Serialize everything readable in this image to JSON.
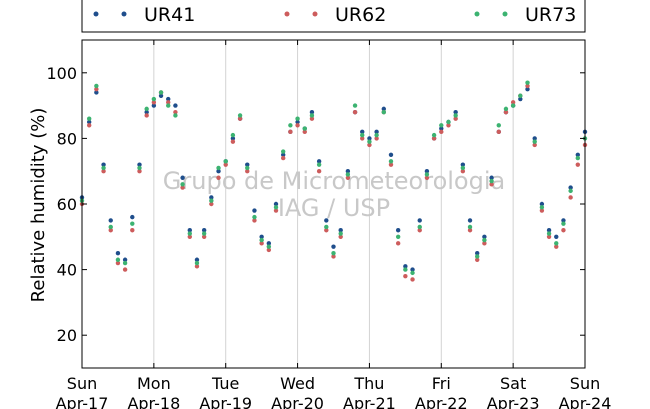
{
  "chart_data": {
    "type": "scatter",
    "ylabel": "Relative humidity (%)",
    "xlabel": "",
    "ylim": [
      10,
      110
    ],
    "xlim": [
      0,
      7
    ],
    "grid": "vertical",
    "legend_placement": "top",
    "watermark": [
      "Grupo de Micrometeorologia",
      "IAG / USP"
    ],
    "y_ticks": [
      {
        "value": 20,
        "label": "20"
      },
      {
        "value": 40,
        "label": "40"
      },
      {
        "value": 60,
        "label": "60"
      },
      {
        "value": 80,
        "label": "80"
      },
      {
        "value": 100,
        "label": "100"
      }
    ],
    "x_ticks": [
      {
        "value": 0,
        "day": "Sun",
        "date": "Apr-17"
      },
      {
        "value": 1,
        "day": "Mon",
        "date": "Apr-18"
      },
      {
        "value": 2,
        "day": "Tue",
        "date": "Apr-19"
      },
      {
        "value": 3,
        "day": "Wed",
        "date": "Apr-20"
      },
      {
        "value": 4,
        "day": "Thu",
        "date": "Apr-21"
      },
      {
        "value": 5,
        "day": "Fri",
        "date": "Apr-22"
      },
      {
        "value": 6,
        "day": "Sat",
        "date": "Apr-23"
      },
      {
        "value": 7,
        "day": "Sun",
        "date": "Apr-24"
      }
    ],
    "series": [
      {
        "name": "UR41",
        "color": "#1f4e8c",
        "x": [
          0,
          0.1,
          0.2,
          0.3,
          0.4,
          0.5,
          0.6,
          0.7,
          0.8,
          0.9,
          1.0,
          1.1,
          1.2,
          1.3,
          1.4,
          1.5,
          1.6,
          1.7,
          1.8,
          1.9,
          2.0,
          2.1,
          2.2,
          2.3,
          2.4,
          2.5,
          2.6,
          2.7,
          2.8,
          2.9,
          3.0,
          3.1,
          3.2,
          3.3,
          3.4,
          3.5,
          3.6,
          3.7,
          3.8,
          3.9,
          4.0,
          4.1,
          4.2,
          4.3,
          4.4,
          4.5,
          4.6,
          4.7,
          4.8,
          4.9,
          5.0,
          5.1,
          5.2,
          5.3,
          5.4,
          5.5,
          5.6,
          5.7,
          5.8,
          5.9,
          6.0,
          6.1,
          6.2,
          6.3,
          6.4,
          6.5,
          6.6,
          6.7,
          6.8,
          6.9,
          7.0
        ],
        "y": [
          62,
          85,
          94,
          72,
          55,
          45,
          43,
          56,
          72,
          88,
          90,
          93,
          92,
          90,
          68,
          52,
          43,
          52,
          62,
          70,
          73,
          80,
          86,
          72,
          58,
          50,
          48,
          60,
          75,
          82,
          85,
          83,
          88,
          73,
          55,
          47,
          52,
          70,
          88,
          82,
          80,
          82,
          89,
          75,
          52,
          41,
          40,
          55,
          70,
          80,
          83,
          85,
          88,
          72,
          55,
          45,
          50,
          68,
          82,
          88,
          90,
          92,
          95,
          80,
          60,
          52,
          50,
          55,
          65,
          75,
          82
        ]
      },
      {
        "name": "UR62",
        "color": "#cd5c5c",
        "x": [
          0,
          0.1,
          0.2,
          0.3,
          0.4,
          0.5,
          0.6,
          0.7,
          0.8,
          0.9,
          1.0,
          1.1,
          1.2,
          1.3,
          1.4,
          1.5,
          1.6,
          1.7,
          1.8,
          1.9,
          2.0,
          2.1,
          2.2,
          2.3,
          2.4,
          2.5,
          2.6,
          2.7,
          2.8,
          2.9,
          3.0,
          3.1,
          3.2,
          3.3,
          3.4,
          3.5,
          3.6,
          3.7,
          3.8,
          3.9,
          4.0,
          4.1,
          4.2,
          4.3,
          4.4,
          4.5,
          4.6,
          4.7,
          4.8,
          4.9,
          5.0,
          5.1,
          5.2,
          5.3,
          5.4,
          5.5,
          5.6,
          5.7,
          5.8,
          5.9,
          6.0,
          6.1,
          6.2,
          6.3,
          6.4,
          6.5,
          6.6,
          6.7,
          6.8,
          6.9,
          7.0
        ],
        "y": [
          60,
          84,
          95,
          70,
          52,
          42,
          40,
          52,
          70,
          87,
          91,
          94,
          91,
          88,
          65,
          50,
          41,
          50,
          60,
          68,
          72,
          79,
          86,
          70,
          55,
          48,
          46,
          58,
          74,
          82,
          84,
          82,
          86,
          70,
          52,
          44,
          50,
          68,
          88,
          80,
          78,
          80,
          88,
          72,
          48,
          38,
          37,
          52,
          68,
          80,
          82,
          84,
          86,
          70,
          52,
          43,
          48,
          66,
          82,
          88,
          91,
          93,
          96,
          78,
          58,
          50,
          47,
          52,
          62,
          72,
          78
        ]
      },
      {
        "name": "UR73",
        "color": "#3cb371",
        "x": [
          0,
          0.1,
          0.2,
          0.3,
          0.4,
          0.5,
          0.6,
          0.7,
          0.8,
          0.9,
          1.0,
          1.1,
          1.2,
          1.3,
          1.4,
          1.5,
          1.6,
          1.7,
          1.8,
          1.9,
          2.0,
          2.1,
          2.2,
          2.3,
          2.4,
          2.5,
          2.6,
          2.7,
          2.8,
          2.9,
          3.0,
          3.1,
          3.2,
          3.3,
          3.4,
          3.5,
          3.6,
          3.7,
          3.8,
          3.9,
          4.0,
          4.1,
          4.2,
          4.3,
          4.4,
          4.5,
          4.6,
          4.7,
          4.8,
          4.9,
          5.0,
          5.1,
          5.2,
          5.3,
          5.4,
          5.5,
          5.6,
          5.7,
          5.8,
          5.9,
          6.0,
          6.1,
          6.2,
          6.3,
          6.4,
          6.5,
          6.6,
          6.7,
          6.8,
          6.9,
          7.0
        ],
        "y": [
          61,
          86,
          96,
          71,
          53,
          43,
          42,
          54,
          71,
          89,
          92,
          94,
          90,
          87,
          66,
          51,
          42,
          51,
          61,
          71,
          73,
          81,
          87,
          71,
          56,
          49,
          47,
          59,
          76,
          84,
          86,
          83,
          87,
          72,
          53,
          45,
          51,
          69,
          90,
          81,
          79,
          81,
          88,
          73,
          50,
          40,
          39,
          53,
          69,
          81,
          84,
          85,
          87,
          71,
          53,
          44,
          49,
          67,
          84,
          89,
          90,
          93,
          97,
          79,
          59,
          51,
          48,
          54,
          64,
          74,
          80
        ]
      }
    ]
  }
}
